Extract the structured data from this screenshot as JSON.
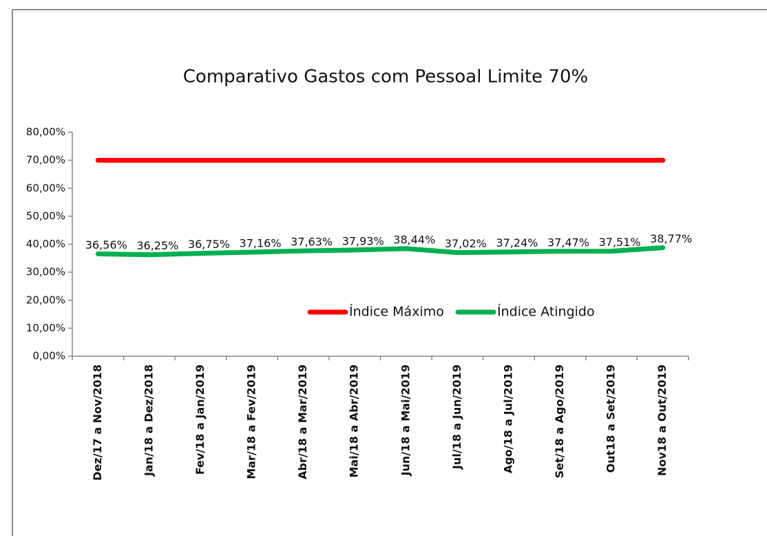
{
  "chart_data": {
    "type": "line",
    "title": "Comparativo Gastos com Pessoal Limite 70%",
    "categories": [
      "Dez/17 a Nov/2018",
      "Jan/18 a Dez/2018",
      "Fev/18 a Jan/2019",
      "Mar/18 a Fev/2019",
      "Abr/18 a Mar/2019",
      "Mai/18 a Abr/2019",
      "Jun/18 a Mai/2019",
      "Jul/18 a Jun/2019",
      "Ago/18 a Jul/2019",
      "Set/18 a Ago/2019",
      "Out18 a Set/2019",
      "Nov18 a Out/2019"
    ],
    "series": [
      {
        "name": "Índice Máximo",
        "color": "#ff0000",
        "values": [
          70,
          70,
          70,
          70,
          70,
          70,
          70,
          70,
          70,
          70,
          70,
          70
        ]
      },
      {
        "name": "Índice Atingido",
        "color": "#00b050",
        "values": [
          36.56,
          36.25,
          36.75,
          37.16,
          37.63,
          37.93,
          38.44,
          37.02,
          37.24,
          37.47,
          37.51,
          38.77
        ],
        "value_labels": [
          "36,56%",
          "36,25%",
          "36,75%",
          "37,16%",
          "37,63%",
          "37,93%",
          "38,44%",
          "37,02%",
          "37,24%",
          "37,47%",
          "37,51%",
          "38,77%"
        ]
      }
    ],
    "ylim": [
      0,
      80
    ],
    "yticks": [
      {
        "value": 0,
        "label": "0,00%"
      },
      {
        "value": 10,
        "label": "10,00%"
      },
      {
        "value": 20,
        "label": "20,00%"
      },
      {
        "value": 30,
        "label": "30,00%"
      },
      {
        "value": 40,
        "label": "40,00%"
      },
      {
        "value": 50,
        "label": "50,00%"
      },
      {
        "value": 60,
        "label": "60,00%"
      },
      {
        "value": 70,
        "label": "70,00%"
      },
      {
        "value": 80,
        "label": "80,00%"
      }
    ],
    "grid": false
  }
}
